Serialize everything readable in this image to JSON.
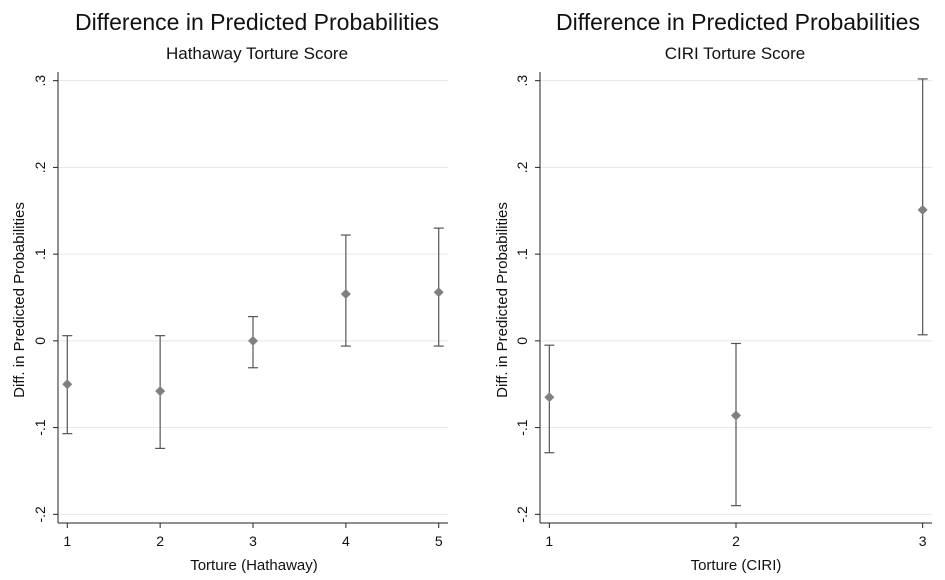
{
  "chart_data": [
    {
      "type": "scatter",
      "title": "Difference in Predicted Probabilities",
      "subtitle": "Hathaway Torture Score",
      "xlabel": "Torture (Hathaway)",
      "ylabel": "Diff. in Predicted Probabilities",
      "x": [
        1,
        2,
        3,
        4,
        5
      ],
      "x_ticks": [
        "1",
        "2",
        "3",
        "4",
        "5"
      ],
      "xlim": [
        0.9,
        5.1
      ],
      "y_ticks": [
        -0.2,
        -0.1,
        0,
        0.1,
        0.2,
        0.3
      ],
      "y_tick_labels": [
        "-.2",
        "-.1",
        "0",
        ".1",
        ".2",
        ".3"
      ],
      "ylim": [
        -0.21,
        0.31
      ],
      "series": [
        {
          "values": [
            -0.05,
            -0.058,
            0.0,
            0.054,
            0.056
          ],
          "lower": [
            -0.107,
            -0.124,
            -0.031,
            -0.006,
            -0.006
          ],
          "upper": [
            0.006,
            0.006,
            0.028,
            0.122,
            0.13
          ]
        }
      ],
      "grid": true,
      "legend": "none",
      "marker": "diamond",
      "marker_color": "#808080"
    },
    {
      "type": "scatter",
      "title": "Difference in Predicted Probabilities",
      "subtitle": "CIRI Torture Score",
      "xlabel": "Torture (CIRI)",
      "ylabel": "Diff. in Predicted Probabilities",
      "x": [
        1,
        2,
        3
      ],
      "x_ticks": [
        "1",
        "2",
        "3"
      ],
      "xlim": [
        0.95,
        3.05
      ],
      "y_ticks": [
        -0.2,
        -0.1,
        0,
        0.1,
        0.2,
        0.3
      ],
      "y_tick_labels": [
        "-.2",
        "-.1",
        "0",
        ".1",
        ".2",
        ".3"
      ],
      "ylim": [
        -0.21,
        0.31
      ],
      "series": [
        {
          "values": [
            -0.065,
            -0.086,
            0.151
          ],
          "lower": [
            -0.129,
            -0.19,
            0.007
          ],
          "upper": [
            -0.005,
            -0.003,
            0.302
          ]
        }
      ],
      "grid": true,
      "legend": "none",
      "marker": "diamond",
      "marker_color": "#808080"
    }
  ]
}
